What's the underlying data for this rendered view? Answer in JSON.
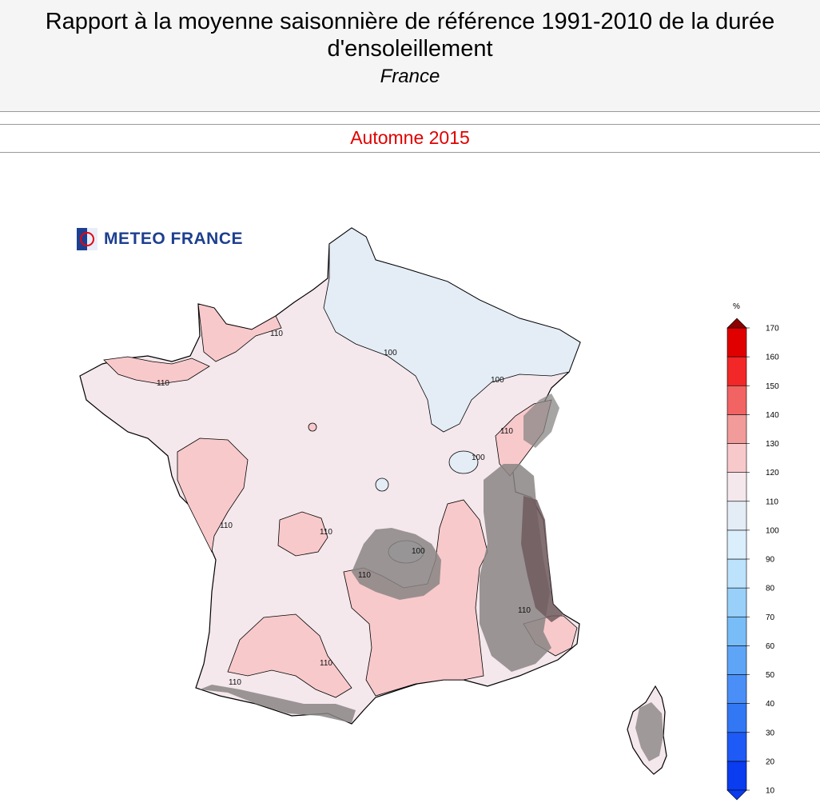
{
  "header": {
    "title_line1": "Rapport à la moyenne saisonnière de référence 1991-2010 de la durée",
    "title_line2": "d'ensoleillement",
    "region": "France"
  },
  "season": "Automne 2015",
  "logo": {
    "text": "METEO FRANCE"
  },
  "legend": {
    "unit": "%",
    "ticks": [
      10,
      20,
      30,
      40,
      50,
      60,
      70,
      80,
      90,
      100,
      110,
      120,
      130,
      140,
      150,
      160,
      170
    ],
    "colors": [
      "#0a3cf0",
      "#1e5af5",
      "#3278f5",
      "#4a8ff7",
      "#5fa5f7",
      "#78bcf8",
      "#98d0fa",
      "#bce2fc",
      "#daeefb",
      "#e4edf6",
      "#f4e8ec",
      "#f8c9cb",
      "#f29b9b",
      "#f26464",
      "#f22828",
      "#e00000",
      "#8c0000"
    ]
  },
  "contour_labels": [
    "110",
    "100",
    "100",
    "110",
    "100",
    "110",
    "110",
    "100",
    "110",
    "110",
    "110",
    "110",
    "110"
  ]
}
